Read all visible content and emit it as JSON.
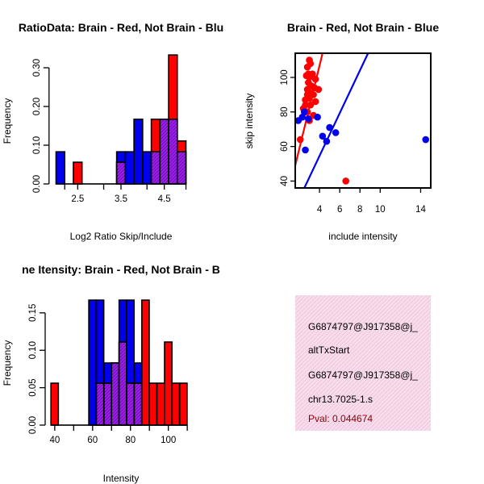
{
  "colors": {
    "red": "#ff0000",
    "blue": "#0000ee",
    "purple": "#a020f0",
    "info_bg": "#f7dcec",
    "pval": "#8b0000",
    "black": "#000000"
  },
  "chart_data": [
    {
      "type": "bar",
      "title": "RatioData: Brain - Red, Not Brain - Blu",
      "xlabel": "Log2 Ratio Skip/Include",
      "ylabel": "Frequency",
      "xlim": [
        1.95,
        5.05
      ],
      "ylim": [
        0,
        0.35
      ],
      "xticks": [
        2.5,
        3.5,
        4.5
      ],
      "xtick_labels": [
        "2.5",
        "3.5",
        "4.5"
      ],
      "yticks": [
        0,
        0.1,
        0.2,
        0.3
      ],
      "ytick_labels": [
        "0.00",
        "0.10",
        "0.20",
        "0.30"
      ],
      "bin_width": 0.2,
      "bin_starts": [
        2.0,
        2.2,
        2.4,
        2.6,
        2.8,
        3.0,
        3.2,
        3.4,
        3.6,
        3.8,
        4.0,
        4.2,
        4.4,
        4.6,
        4.8
      ],
      "series": [
        {
          "name": "Not Brain",
          "color": "blue",
          "values": [
            0.083,
            0,
            0,
            0,
            0,
            0,
            0,
            0.083,
            0.083,
            0.167,
            0.083,
            0.083,
            0.167,
            0.167,
            0.083
          ]
        },
        {
          "name": "Brain",
          "color": "red",
          "values": [
            0,
            0,
            0.056,
            0,
            0,
            0,
            0,
            0.056,
            0,
            0,
            0,
            0.167,
            0.167,
            0.333,
            0.111
          ]
        }
      ]
    },
    {
      "type": "scatter",
      "title": "Brain - Red, Not Brain - Blue",
      "xlabel": "include intensity",
      "ylabel": "skip intensity",
      "xlim": [
        1.6,
        15.0
      ],
      "ylim": [
        36,
        114
      ],
      "xticks": [
        4,
        6,
        8,
        10,
        14
      ],
      "xtick_labels": [
        "4",
        "6",
        "8",
        "10",
        "14"
      ],
      "yticks": [
        40,
        60,
        80,
        100
      ],
      "ytick_labels": [
        "40",
        "60",
        "80",
        "100"
      ],
      "series": [
        {
          "name": "Brain",
          "color": "red",
          "points": [
            [
              3.0,
              110
            ],
            [
              3.1,
              108
            ],
            [
              2.8,
              106
            ],
            [
              2.9,
              102
            ],
            [
              3.3,
              102
            ],
            [
              2.7,
              101
            ],
            [
              3.0,
              100
            ],
            [
              3.6,
              99
            ],
            [
              2.9,
              97
            ],
            [
              3.2,
              95
            ],
            [
              3.5,
              94
            ],
            [
              2.8,
              93
            ],
            [
              3.9,
              93
            ],
            [
              3.1,
              91
            ],
            [
              2.8,
              90
            ],
            [
              3.4,
              90
            ],
            [
              3.0,
              88
            ],
            [
              2.6,
              87
            ],
            [
              3.6,
              86
            ],
            [
              2.6,
              84
            ],
            [
              3.1,
              84
            ],
            [
              2.4,
              82
            ],
            [
              2.8,
              80
            ],
            [
              3.4,
              78
            ],
            [
              3.0,
              75
            ],
            [
              2.1,
              64
            ],
            [
              6.6,
              40
            ]
          ],
          "fit_line": [
            [
              1.6,
              49
            ],
            [
              4.3,
              114
            ]
          ]
        },
        {
          "name": "Not Brain",
          "color": "blue",
          "points": [
            [
              1.9,
              75
            ],
            [
              2.5,
              80
            ],
            [
              2.3,
              77
            ],
            [
              2.9,
              76
            ],
            [
              3.8,
              77
            ],
            [
              5.0,
              71
            ],
            [
              5.6,
              68
            ],
            [
              4.3,
              66
            ],
            [
              4.7,
              63
            ],
            [
              2.6,
              58
            ],
            [
              14.5,
              64
            ]
          ],
          "fit_line": [
            [
              2.5,
              36
            ],
            [
              8.8,
              114
            ]
          ]
        }
      ]
    },
    {
      "type": "bar",
      "title": "ne Itensity: Brain - Red, Not Brain - B",
      "xlabel": "Intensity",
      "ylabel": "Frequency",
      "xlim": [
        37.5,
        112.5
      ],
      "ylim": [
        0,
        0.18
      ],
      "xticks": [
        40,
        60,
        80,
        100
      ],
      "xtick_labels": [
        "40",
        "60",
        "80",
        "100"
      ],
      "yticks": [
        0,
        0.05,
        0.1,
        0.15
      ],
      "ytick_labels": [
        "0.00",
        "0.05",
        "0.10",
        "0.15"
      ],
      "bin_width": 3.9,
      "bin_starts": [
        38,
        42,
        46,
        50,
        54,
        58,
        62,
        66,
        70,
        74,
        78,
        82,
        86,
        90,
        94,
        98,
        102,
        106
      ],
      "series": [
        {
          "name": "Not Brain",
          "color": "blue",
          "values": [
            0,
            0,
            0,
            0,
            0,
            0.167,
            0.167,
            0.083,
            0.083,
            0.167,
            0.167,
            0.083,
            0,
            0,
            0,
            0,
            0,
            0
          ]
        },
        {
          "name": "Brain",
          "color": "red",
          "values": [
            0.056,
            0,
            0,
            0,
            0,
            0,
            0.056,
            0.056,
            0.083,
            0.111,
            0.056,
            0.056,
            0.167,
            0.056,
            0.056,
            0.111,
            0.056,
            0.056
          ]
        }
      ]
    }
  ],
  "info_box": {
    "line1": "G6874797@J917358@j_",
    "line2": "altTxStart",
    "line3": "G6874797@J917358@j_",
    "line4": "chr13.7025-1.s",
    "pval": "Pval: 0.044674"
  }
}
